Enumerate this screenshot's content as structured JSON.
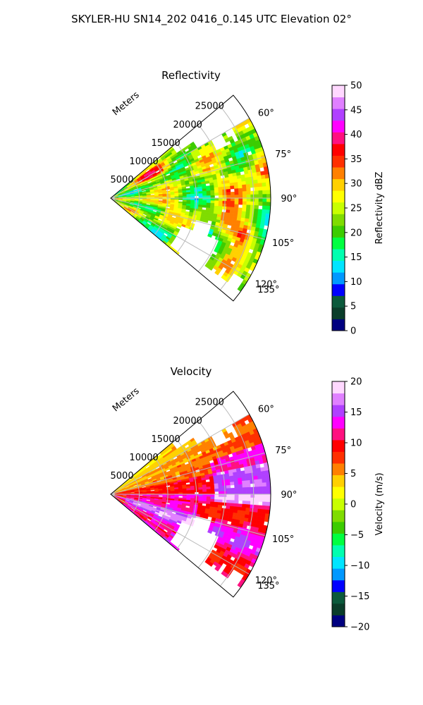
{
  "figure": {
    "title": "SKYLER-HU  SN14_202  0416_0.145 UTC Elevation 02°"
  },
  "chart_data": [
    {
      "type": "heatmap",
      "subtype": "polar-sector",
      "title": "Reflectivity",
      "range_axis_label": "Meters",
      "range_ticks": [
        "5000",
        "10000",
        "15000",
        "20000",
        "25000"
      ],
      "azimuth_ticks": [
        "60°",
        "75°",
        "90°",
        "105°",
        "120°",
        "135°"
      ],
      "azimuth_range": [
        50,
        130
      ],
      "range_limit": [
        0,
        28000
      ],
      "colorbar": {
        "label": "Reflectivity dBZ",
        "ticks": [
          "0",
          "5",
          "10",
          "15",
          "20",
          "25",
          "30",
          "35",
          "40",
          "45",
          "50"
        ],
        "range": [
          0,
          50
        ],
        "colors": [
          "#000080",
          "#0a3d2a",
          "#0b5a3c",
          "#0000ff",
          "#0098ff",
          "#00e5ff",
          "#00ffb0",
          "#00ff40",
          "#3ccc00",
          "#7fdc00",
          "#c8ff00",
          "#ffff00",
          "#ffd000",
          "#ff8000",
          "#ff3000",
          "#ff0000",
          "#ff1080",
          "#ff00ff",
          "#b040ff",
          "#e080ff",
          "#ffd8ff"
        ]
      },
      "field_description": "moderate returns 20-30 dBZ across sector with cores of 35-45 dBZ"
    },
    {
      "type": "heatmap",
      "subtype": "polar-sector",
      "title": "Velocity",
      "range_axis_label": "Meters",
      "range_ticks": [
        "5000",
        "10000",
        "15000",
        "20000",
        "25000"
      ],
      "azimuth_ticks": [
        "60°",
        "75°",
        "90°",
        "105°",
        "120°",
        "135°"
      ],
      "azimuth_range": [
        50,
        130
      ],
      "range_limit": [
        0,
        28000
      ],
      "colorbar": {
        "label": "Velocity (m/s)",
        "ticks": [
          "20",
          "15",
          "10",
          "5",
          "0",
          "−5",
          "−10",
          "−15",
          "−20"
        ],
        "range": [
          -20,
          20
        ],
        "colors": [
          "#000080",
          "#0a3d2a",
          "#0b5a3c",
          "#0000ff",
          "#0098ff",
          "#00e5ff",
          "#00ffb0",
          "#00ff40",
          "#3ccc00",
          "#7fdc00",
          "#c8ff00",
          "#ffff00",
          "#ffd000",
          "#ff8000",
          "#ff3000",
          "#ff0000",
          "#ff1080",
          "#ff00ff",
          "#b040ff",
          "#e080ff",
          "#ffd8ff"
        ]
      },
      "field_description": "outbound 0-5 m/s in northern azimuths, 8-14 m/s across central and southern azimuths"
    }
  ]
}
